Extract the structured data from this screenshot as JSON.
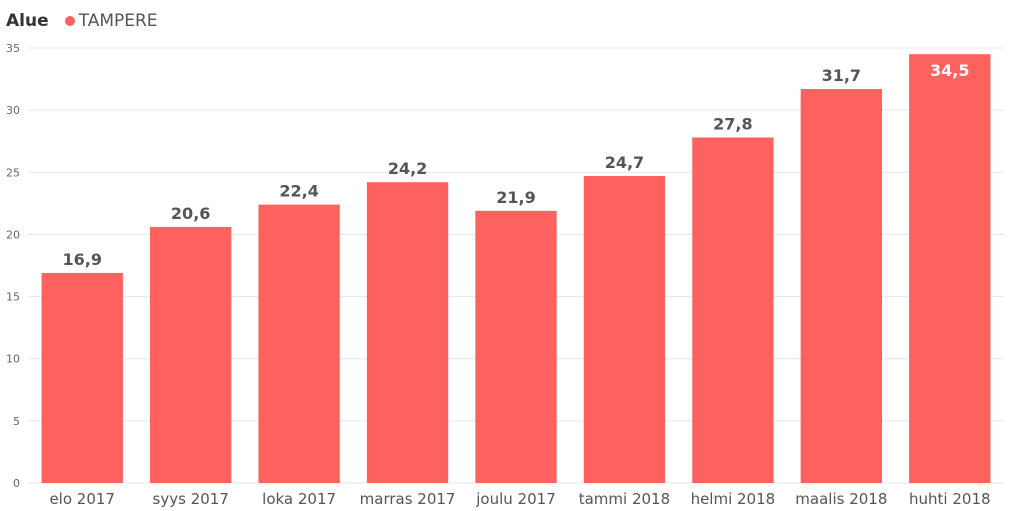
{
  "legend": {
    "title": "Alue",
    "series_name": "TAMPERE"
  },
  "colors": {
    "bar": "#FD625E",
    "grid": "#E6E6E6",
    "label_outside": "#555555",
    "label_inside": "#FFFFFF"
  },
  "chart_data": {
    "type": "bar",
    "categories": [
      "elo 2017",
      "syys 2017",
      "loka 2017",
      "marras 2017",
      "joulu 2017",
      "tammi 2018",
      "helmi 2018",
      "maalis 2018",
      "huhti 2018"
    ],
    "series": [
      {
        "name": "TAMPERE",
        "values": [
          16.9,
          20.6,
          22.4,
          24.2,
          21.9,
          24.7,
          27.8,
          31.7,
          34.5
        ]
      }
    ],
    "value_labels": [
      "16,9",
      "20,6",
      "22,4",
      "24,2",
      "21,9",
      "24,7",
      "27,8",
      "31,7",
      "34,5"
    ],
    "ylim": [
      0,
      35
    ],
    "yticks": [
      0,
      5,
      10,
      15,
      20,
      25,
      30,
      35
    ],
    "grid": true,
    "legend_position": "top-left"
  }
}
